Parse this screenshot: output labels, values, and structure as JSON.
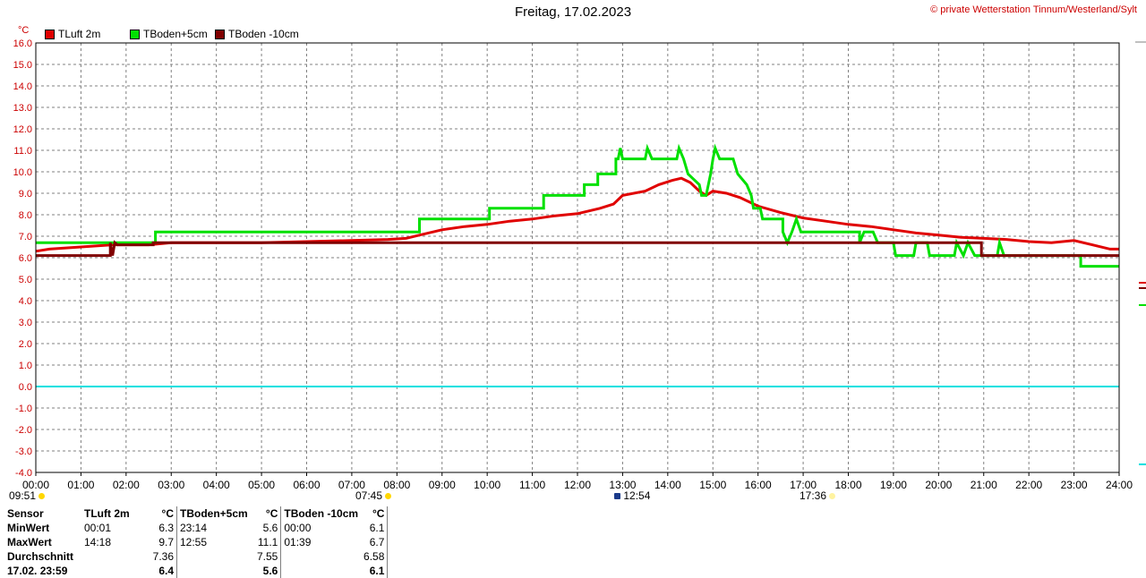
{
  "header": {
    "title": "Freitag, 17.02.2023",
    "copyright": "© private Wetterstation Tinnum/Westerland/Sylt"
  },
  "markers": [
    {
      "time": "09:51",
      "icon": "sun-icon"
    },
    {
      "time": "07:45",
      "icon": "sunrise-icon"
    },
    {
      "time": "12:54",
      "icon": "sun-high-icon"
    },
    {
      "time": "17:36",
      "icon": "sunset-icon"
    }
  ],
  "colors": {
    "tluft": "#e00000",
    "tboden5": "#00e000",
    "tboden10": "#800000",
    "zero_line": "#00e0e0",
    "grid": "#808080"
  },
  "stats": {
    "headers": [
      "Sensor",
      "TLuft 2m",
      "°C",
      "TBoden+5cm",
      "°C",
      "TBoden -10cm",
      "°C"
    ],
    "rows": [
      {
        "label": "MinWert",
        "t1": "00:01",
        "v1": "6.3",
        "t2": "23:14",
        "v2": "5.6",
        "t3": "00:00",
        "v3": "6.1"
      },
      {
        "label": "MaxWert",
        "t1": "14:18",
        "v1": "9.7",
        "t2": "12:55",
        "v2": "11.1",
        "t3": "01:39",
        "v3": "6.7"
      },
      {
        "label": "Durchschnitt",
        "t1": "",
        "v1": "7.36",
        "t2": "",
        "v2": "7.55",
        "t3": "",
        "v3": "6.58"
      },
      {
        "label": "17.02. 23:59",
        "t1": "",
        "v1": "6.4",
        "t2": "",
        "v2": "5.6",
        "t3": "",
        "v3": "6.1"
      }
    ]
  },
  "chart_data": {
    "type": "line",
    "title": "Freitag, 17.02.2023",
    "ylabel": "°C",
    "xlabel": "",
    "ylim": [
      -4.0,
      16.0
    ],
    "xlim": [
      0,
      24
    ],
    "grid": true,
    "legend_position": "top-left",
    "y_ticks": [
      "16.0",
      "15.0",
      "14.0",
      "13.0",
      "12.0",
      "11.0",
      "10.0",
      "9.0",
      "8.0",
      "7.0",
      "6.0",
      "5.0",
      "4.0",
      "3.0",
      "2.0",
      "1.0",
      "0.0",
      "-1.0",
      "-2.0",
      "-3.0",
      "-4.0"
    ],
    "x_ticks": [
      "00:00",
      "01:00",
      "02:00",
      "03:00",
      "04:00",
      "05:00",
      "06:00",
      "07:00",
      "08:00",
      "09:00",
      "10:00",
      "11:00",
      "12:00",
      "13:00",
      "14:00",
      "15:00",
      "16:00",
      "17:00",
      "18:00",
      "19:00",
      "20:00",
      "21:00",
      "22:00",
      "23:00",
      "24:00"
    ],
    "series": [
      {
        "name": "TLuft 2m",
        "color": "#e00000",
        "points": [
          [
            0,
            6.3
          ],
          [
            0.3,
            6.4
          ],
          [
            1.0,
            6.5
          ],
          [
            1.7,
            6.6
          ],
          [
            2.5,
            6.6
          ],
          [
            3.0,
            6.7
          ],
          [
            4.0,
            6.7
          ],
          [
            5.0,
            6.7
          ],
          [
            6.0,
            6.75
          ],
          [
            7.0,
            6.8
          ],
          [
            7.8,
            6.85
          ],
          [
            8.2,
            6.9
          ],
          [
            8.6,
            7.1
          ],
          [
            9.0,
            7.3
          ],
          [
            9.5,
            7.45
          ],
          [
            10.0,
            7.55
          ],
          [
            10.5,
            7.7
          ],
          [
            11.0,
            7.8
          ],
          [
            11.5,
            7.95
          ],
          [
            12.0,
            8.05
          ],
          [
            12.5,
            8.3
          ],
          [
            12.8,
            8.5
          ],
          [
            13.0,
            8.9
          ],
          [
            13.5,
            9.1
          ],
          [
            13.8,
            9.4
          ],
          [
            14.1,
            9.6
          ],
          [
            14.3,
            9.7
          ],
          [
            14.5,
            9.5
          ],
          [
            14.7,
            9.1
          ],
          [
            14.85,
            8.9
          ],
          [
            15.0,
            9.1
          ],
          [
            15.3,
            9.0
          ],
          [
            15.6,
            8.8
          ],
          [
            16.0,
            8.4
          ],
          [
            16.5,
            8.1
          ],
          [
            17.0,
            7.85
          ],
          [
            17.5,
            7.7
          ],
          [
            18.0,
            7.55
          ],
          [
            18.5,
            7.45
          ],
          [
            19.0,
            7.3
          ],
          [
            19.5,
            7.15
          ],
          [
            20.0,
            7.05
          ],
          [
            20.5,
            6.95
          ],
          [
            21.0,
            6.9
          ],
          [
            21.5,
            6.85
          ],
          [
            22.0,
            6.75
          ],
          [
            22.5,
            6.7
          ],
          [
            23.0,
            6.8
          ],
          [
            23.4,
            6.6
          ],
          [
            23.8,
            6.4
          ],
          [
            24.0,
            6.4
          ]
        ]
      },
      {
        "name": "TBoden+5cm",
        "color": "#00e000",
        "points": [
          [
            0,
            6.7
          ],
          [
            2.65,
            6.7
          ],
          [
            2.65,
            7.2
          ],
          [
            8.5,
            7.2
          ],
          [
            8.5,
            7.8
          ],
          [
            10.05,
            7.8
          ],
          [
            10.05,
            8.3
          ],
          [
            11.25,
            8.3
          ],
          [
            11.25,
            8.9
          ],
          [
            12.15,
            8.9
          ],
          [
            12.15,
            9.4
          ],
          [
            12.45,
            9.4
          ],
          [
            12.45,
            9.9
          ],
          [
            12.85,
            9.9
          ],
          [
            12.85,
            10.6
          ],
          [
            12.9,
            10.6
          ],
          [
            12.95,
            11.1
          ],
          [
            13.0,
            10.6
          ],
          [
            13.5,
            10.6
          ],
          [
            13.55,
            11.1
          ],
          [
            13.65,
            10.6
          ],
          [
            14.2,
            10.6
          ],
          [
            14.25,
            11.1
          ],
          [
            14.35,
            10.6
          ],
          [
            14.45,
            9.9
          ],
          [
            14.7,
            9.4
          ],
          [
            14.75,
            8.9
          ],
          [
            14.85,
            8.9
          ],
          [
            14.95,
            9.9
          ],
          [
            15.0,
            10.6
          ],
          [
            15.05,
            11.1
          ],
          [
            15.15,
            10.6
          ],
          [
            15.45,
            10.6
          ],
          [
            15.55,
            9.9
          ],
          [
            15.75,
            9.4
          ],
          [
            15.85,
            8.9
          ],
          [
            15.9,
            8.3
          ],
          [
            16.05,
            8.3
          ],
          [
            16.1,
            7.8
          ],
          [
            16.55,
            7.8
          ],
          [
            16.55,
            7.2
          ],
          [
            16.65,
            6.7
          ],
          [
            16.75,
            7.2
          ],
          [
            16.85,
            7.8
          ],
          [
            16.95,
            7.2
          ],
          [
            18.25,
            7.2
          ],
          [
            18.25,
            6.7
          ],
          [
            18.35,
            7.2
          ],
          [
            18.55,
            7.2
          ],
          [
            18.65,
            6.7
          ],
          [
            19.0,
            6.7
          ],
          [
            19.05,
            6.1
          ],
          [
            19.45,
            6.1
          ],
          [
            19.5,
            6.7
          ],
          [
            19.75,
            6.7
          ],
          [
            19.8,
            6.1
          ],
          [
            20.35,
            6.1
          ],
          [
            20.4,
            6.7
          ],
          [
            20.55,
            6.1
          ],
          [
            20.65,
            6.7
          ],
          [
            20.8,
            6.1
          ],
          [
            21.1,
            6.1
          ],
          [
            21.2,
            6.1
          ],
          [
            21.3,
            6.1
          ],
          [
            21.35,
            6.7
          ],
          [
            21.45,
            6.1
          ],
          [
            23.15,
            6.1
          ],
          [
            23.15,
            5.6
          ],
          [
            24.0,
            5.6
          ]
        ]
      },
      {
        "name": "TBoden -10cm",
        "color": "#800000",
        "points": [
          [
            0,
            6.1
          ],
          [
            1.65,
            6.1
          ],
          [
            1.65,
            6.7
          ],
          [
            1.7,
            6.1
          ],
          [
            1.75,
            6.7
          ],
          [
            1.8,
            6.6
          ],
          [
            2.0,
            6.6
          ],
          [
            2.0,
            6.6
          ],
          [
            2.6,
            6.6
          ],
          [
            2.6,
            6.7
          ],
          [
            20.95,
            6.7
          ],
          [
            20.95,
            6.1
          ],
          [
            24.0,
            6.1
          ]
        ]
      },
      {
        "name": "zero",
        "color": "#00e0e0",
        "points": [
          [
            0,
            0
          ],
          [
            24,
            0
          ]
        ]
      }
    ]
  }
}
